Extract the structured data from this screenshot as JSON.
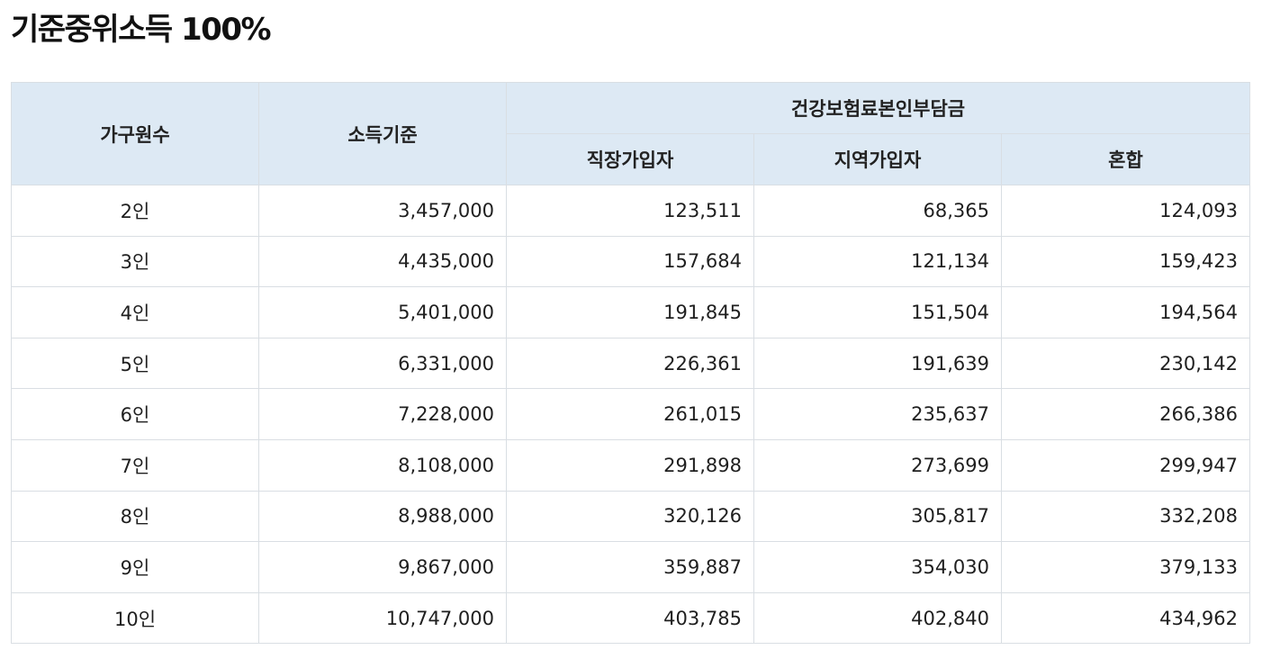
{
  "page": {
    "title": "기준중위소득 100%"
  },
  "table": {
    "headers": {
      "household": "가구원수",
      "income": "소득기준",
      "premium_group": "건강보험료본인부담금",
      "employee": "직장가입자",
      "regional": "지역가입자",
      "mixed": "혼합"
    },
    "rows": [
      {
        "household": "2인",
        "income": "3,457,000",
        "employee": "123,511",
        "regional": "68,365",
        "mixed": "124,093"
      },
      {
        "household": "3인",
        "income": "4,435,000",
        "employee": "157,684",
        "regional": "121,134",
        "mixed": "159,423"
      },
      {
        "household": "4인",
        "income": "5,401,000",
        "employee": "191,845",
        "regional": "151,504",
        "mixed": "194,564"
      },
      {
        "household": "5인",
        "income": "6,331,000",
        "employee": "226,361",
        "regional": "191,639",
        "mixed": "230,142"
      },
      {
        "household": "6인",
        "income": "7,228,000",
        "employee": "261,015",
        "regional": "235,637",
        "mixed": "266,386"
      },
      {
        "household": "7인",
        "income": "8,108,000",
        "employee": "291,898",
        "regional": "273,699",
        "mixed": "299,947"
      },
      {
        "household": "8인",
        "income": "8,988,000",
        "employee": "320,126",
        "regional": "305,817",
        "mixed": "332,208"
      },
      {
        "household": "9인",
        "income": "9,867,000",
        "employee": "359,887",
        "regional": "354,030",
        "mixed": "379,133"
      },
      {
        "household": "10인",
        "income": "10,747,000",
        "employee": "403,785",
        "regional": "402,840",
        "mixed": "434,962"
      }
    ]
  },
  "colors": {
    "header_background": "#dde9f4",
    "border": "#d9dee3",
    "text": "#1f1f1f"
  }
}
